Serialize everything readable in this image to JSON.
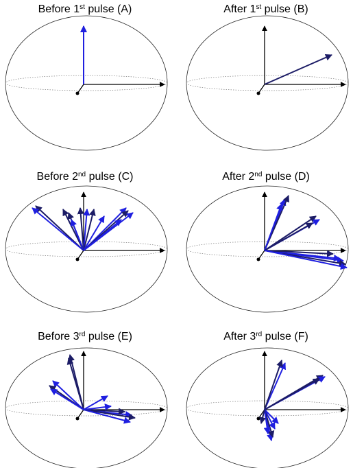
{
  "panels": [
    {
      "title": {
        "before": "Before 1",
        "sup": "st",
        "after": " pulse (A)"
      }
    },
    {
      "title": {
        "before": "After 1",
        "sup": "st",
        "after": " pulse (B)"
      }
    },
    {
      "title": {
        "before": "Before 2",
        "sup": "nd",
        "after": " pulse (C)"
      }
    },
    {
      "title": {
        "before": "After 2",
        "sup": "nd",
        "after": " pulse (D)"
      }
    },
    {
      "title": {
        "before": "Before 3",
        "sup": "rd",
        "after": " pulse (E)"
      }
    },
    {
      "title": {
        "before": "After 3",
        "sup": "rd",
        "after": " pulse (F)"
      }
    }
  ]
}
